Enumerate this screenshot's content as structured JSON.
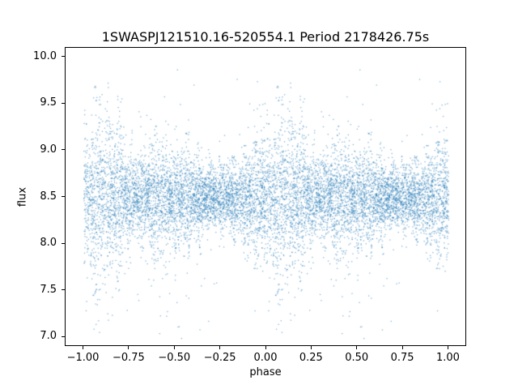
{
  "figure": {
    "background": "#ffffff",
    "frame_color": "#000000",
    "text_color": "#000000"
  },
  "chart_data": {
    "type": "scatter",
    "title": "1SWASPJ121510.16-520554.1 Period 2178426.75s",
    "xlabel": "phase",
    "ylabel": "flux",
    "xlim": [
      -1.1,
      1.1
    ],
    "ylim": [
      6.9,
      10.1
    ],
    "x_ticks": [
      -1.0,
      -0.75,
      -0.5,
      -0.25,
      0.0,
      0.25,
      0.5,
      0.75,
      1.0
    ],
    "x_tick_labels": [
      "−1.00",
      "−0.75",
      "−0.50",
      "−0.25",
      "0.00",
      "0.25",
      "0.50",
      "0.75",
      "1.00"
    ],
    "y_ticks": [
      7.0,
      7.5,
      8.0,
      8.5,
      9.0,
      9.5,
      10.0
    ],
    "y_tick_labels": [
      "7.0",
      "7.5",
      "8.0",
      "8.5",
      "9.0",
      "9.5",
      "10.0"
    ],
    "grid": false,
    "legend": null,
    "marker_color": "#1f77b4",
    "marker_alpha": 0.55,
    "marker_size_px": 1.3,
    "point_generator": {
      "description": "Folded light curve: dense noisy band of flux centered at 8.5, duplicated over phase [-1,0] and [0,1]; tall dense flare clusters near phase 0.0-0.2 (and -1.0..-0.8) reaching flux ~9.8, moderate clusters near 0.4 and 0.55 and 0.9, sparse faint outliers down to flux ~7.0",
      "seed": 42,
      "n_unique": 5200,
      "duplicate_offset": -1,
      "center": 8.5,
      "base_sigma": 0.17,
      "clusters": [
        {
          "phase": 0.1,
          "amp": 0.3,
          "width": 0.09
        },
        {
          "phase": 0.4,
          "amp": 0.14,
          "width": 0.05
        },
        {
          "phase": 0.55,
          "amp": 0.1,
          "width": 0.05
        },
        {
          "phase": 0.92,
          "amp": 0.1,
          "width": 0.04
        }
      ],
      "stripe_freq": 16,
      "stripe_depth": 0.45,
      "outlier_fraction": 0.02,
      "outlier_scale": 2.6,
      "n_low_outliers": 34,
      "low_outlier_range": [
        6.98,
        7.95
      ],
      "n_high_outliers": 14,
      "high_outlier_range": [
        9.35,
        9.85
      ],
      "y_clip": [
        6.98,
        9.95
      ]
    }
  }
}
